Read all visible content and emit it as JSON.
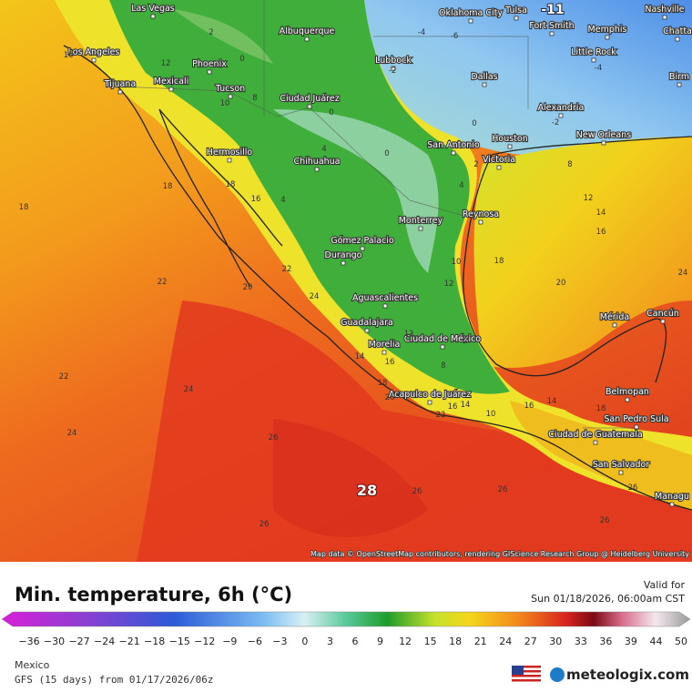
{
  "header": {
    "title": "Min. temperature, 6h (°C)",
    "valid_label": "Valid for",
    "valid_time": "Sun 01/18/2026, 06:00am CST"
  },
  "legend": {
    "ticks": [
      "−36",
      "−30",
      "−27",
      "−24",
      "−21",
      "−18",
      "−15",
      "−12",
      "−9",
      "−6",
      "−3",
      "0",
      "3",
      "6",
      "9",
      "12",
      "15",
      "18",
      "21",
      "24",
      "27",
      "30",
      "33",
      "36",
      "39",
      "44",
      "50"
    ]
  },
  "map": {
    "attribution": "Map data © OpenStreetMap contributors, rendering GIScience Research Group @ Heidelberg University",
    "cities": [
      "Las Vegas",
      "Oklahoma City",
      "Tulsa",
      "Nashville",
      "Memphis",
      "Fort Smith",
      "Chatta",
      "Albuquerque",
      "Los Angeles",
      "Lubbock",
      "Little Rock",
      "Birm",
      "Phoenix",
      "Tijuana",
      "Mexicali",
      "Dallas",
      "Tucson",
      "Ciudad Juárez",
      "Alexandria",
      "Houston",
      "New Orleans",
      "San Antonio",
      "Hermosillo",
      "Chihuahua",
      "Victoria",
      "Monterrey",
      "Reynosa",
      "Gómez Palacio",
      "Durango",
      "Aguascalientes",
      "Mérida",
      "Cancún",
      "Guadalajara",
      "Morelia",
      "Ciudad de México",
      "Belmopan",
      "Acapulco de Juárez",
      "San Pedro Sula",
      "Ciudad de Guatemala",
      "San Salvador",
      "Managu"
    ],
    "highlight_labels": [
      -11,
      28
    ],
    "contour_labels": [
      2,
      0,
      12,
      10,
      8,
      16,
      18,
      18,
      18,
      16,
      4,
      22,
      22,
      20,
      24,
      22,
      24,
      24,
      26,
      26,
      22,
      16,
      10,
      16,
      14,
      18,
      26,
      26,
      26,
      26,
      26,
      20,
      18,
      16,
      14,
      12,
      8,
      0,
      2,
      -2,
      -4,
      -6,
      -4,
      -2,
      0,
      4,
      0,
      4,
      10,
      12,
      14,
      16,
      18,
      8,
      2,
      12,
      14,
      24
    ]
  },
  "footer": {
    "region": "Mexico",
    "model": "GFS (15 days) from 01/17/2026/06z",
    "brand": "meteologix.com"
  }
}
